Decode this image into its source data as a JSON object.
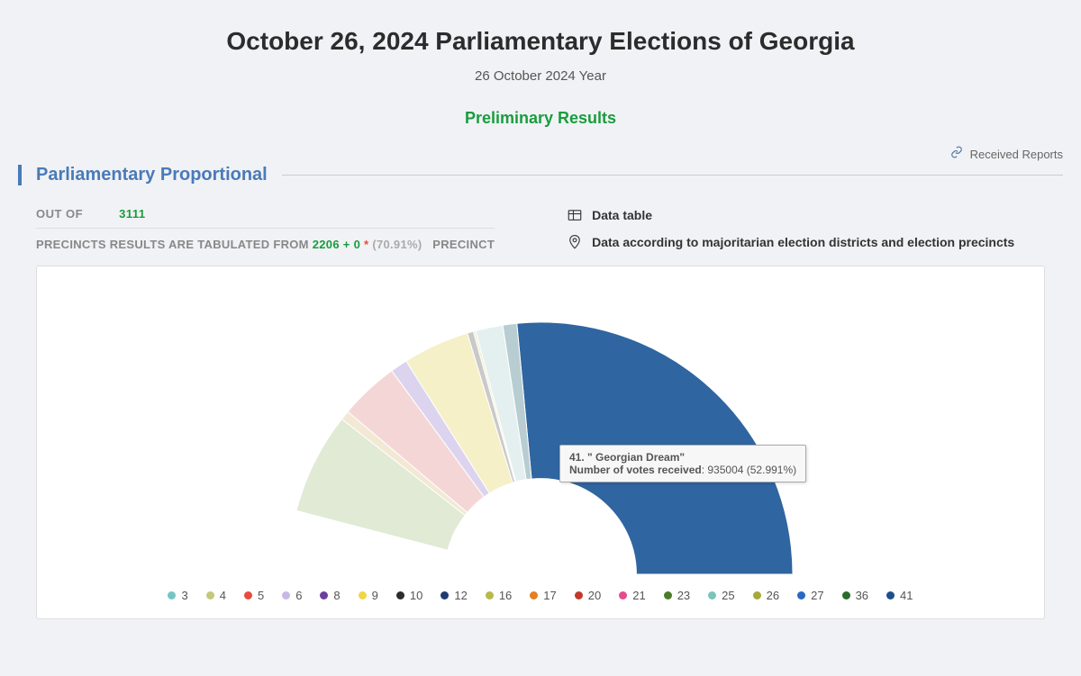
{
  "header": {
    "title": "October 26, 2024 Parliamentary Elections of Georgia",
    "subtitle": "26 October 2024 Year",
    "results_label": "Preliminary Results",
    "reports_link": "Received Reports"
  },
  "section": {
    "title": "Parliamentary Proportional"
  },
  "stats": {
    "out_of_label": "OUT OF",
    "out_of_value": "3111",
    "precincts_label_pre": "PRECINCTS RESULTS ARE TABULATED FROM",
    "precincts_value": "2206 + 0",
    "precincts_pct": "(70.91%)",
    "precincts_label_post": "PRECINCT",
    "star": "*"
  },
  "links": {
    "data_table": "Data table",
    "by_district": "Data according to majoritarian election districts and election precincts"
  },
  "tooltip": {
    "line1": "41. \" Georgian Dream\"",
    "line2_label": "Number of votes received",
    "line2_value": ": 935004 (52.991%)"
  },
  "chart": {
    "type": "semi-donut",
    "inner_radius_ratio": 0.38,
    "outer_radius": 280,
    "bg": "#ffffff",
    "legend": [
      {
        "label": "3",
        "color": "#77c4c4"
      },
      {
        "label": "4",
        "color": "#c4c97a"
      },
      {
        "label": "5",
        "color": "#e74c3c"
      },
      {
        "label": "6",
        "color": "#c7b8e8"
      },
      {
        "label": "8",
        "color": "#6b3fa0"
      },
      {
        "label": "9",
        "color": "#f0d548"
      },
      {
        "label": "10",
        "color": "#2c2c2c"
      },
      {
        "label": "12",
        "color": "#1f3b6f"
      },
      {
        "label": "16",
        "color": "#b8b84a"
      },
      {
        "label": "17",
        "color": "#e67e22"
      },
      {
        "label": "20",
        "color": "#c0392b"
      },
      {
        "label": "21",
        "color": "#e84b8a"
      },
      {
        "label": "23",
        "color": "#4a7c2a"
      },
      {
        "label": "25",
        "color": "#7bc4b8"
      },
      {
        "label": "26",
        "color": "#a8a838"
      },
      {
        "label": "27",
        "color": "#2969c4"
      },
      {
        "label": "36",
        "color": "#2a6b2a"
      },
      {
        "label": "41",
        "color": "#1f4e8c"
      }
    ],
    "slices": [
      {
        "color": "#2f65a0",
        "pct": 52.99
      },
      {
        "color": "#b8cdd1",
        "pct": 1.8
      },
      {
        "color": "#e4f0f0",
        "pct": 3.5
      },
      {
        "color": "#f0f0d0",
        "pct": 0.3
      },
      {
        "color": "#c9c9c9",
        "pct": 0.8
      },
      {
        "color": "#f5f0c8",
        "pct": 8.5
      },
      {
        "color": "#dcd4ee",
        "pct": 2.2
      },
      {
        "color": "#f5d6d6",
        "pct": 7.6
      },
      {
        "color": "#f2e8d4",
        "pct": 1.2
      },
      {
        "color": "#e0ead4",
        "pct": 13.0
      },
      {
        "color": "#ffffff",
        "pct": 8.1
      }
    ]
  },
  "colors": {
    "page_bg": "#f0f2f5",
    "accent_blue": "#4a7ab8",
    "green": "#1a9c3e",
    "grey_text": "#888"
  }
}
